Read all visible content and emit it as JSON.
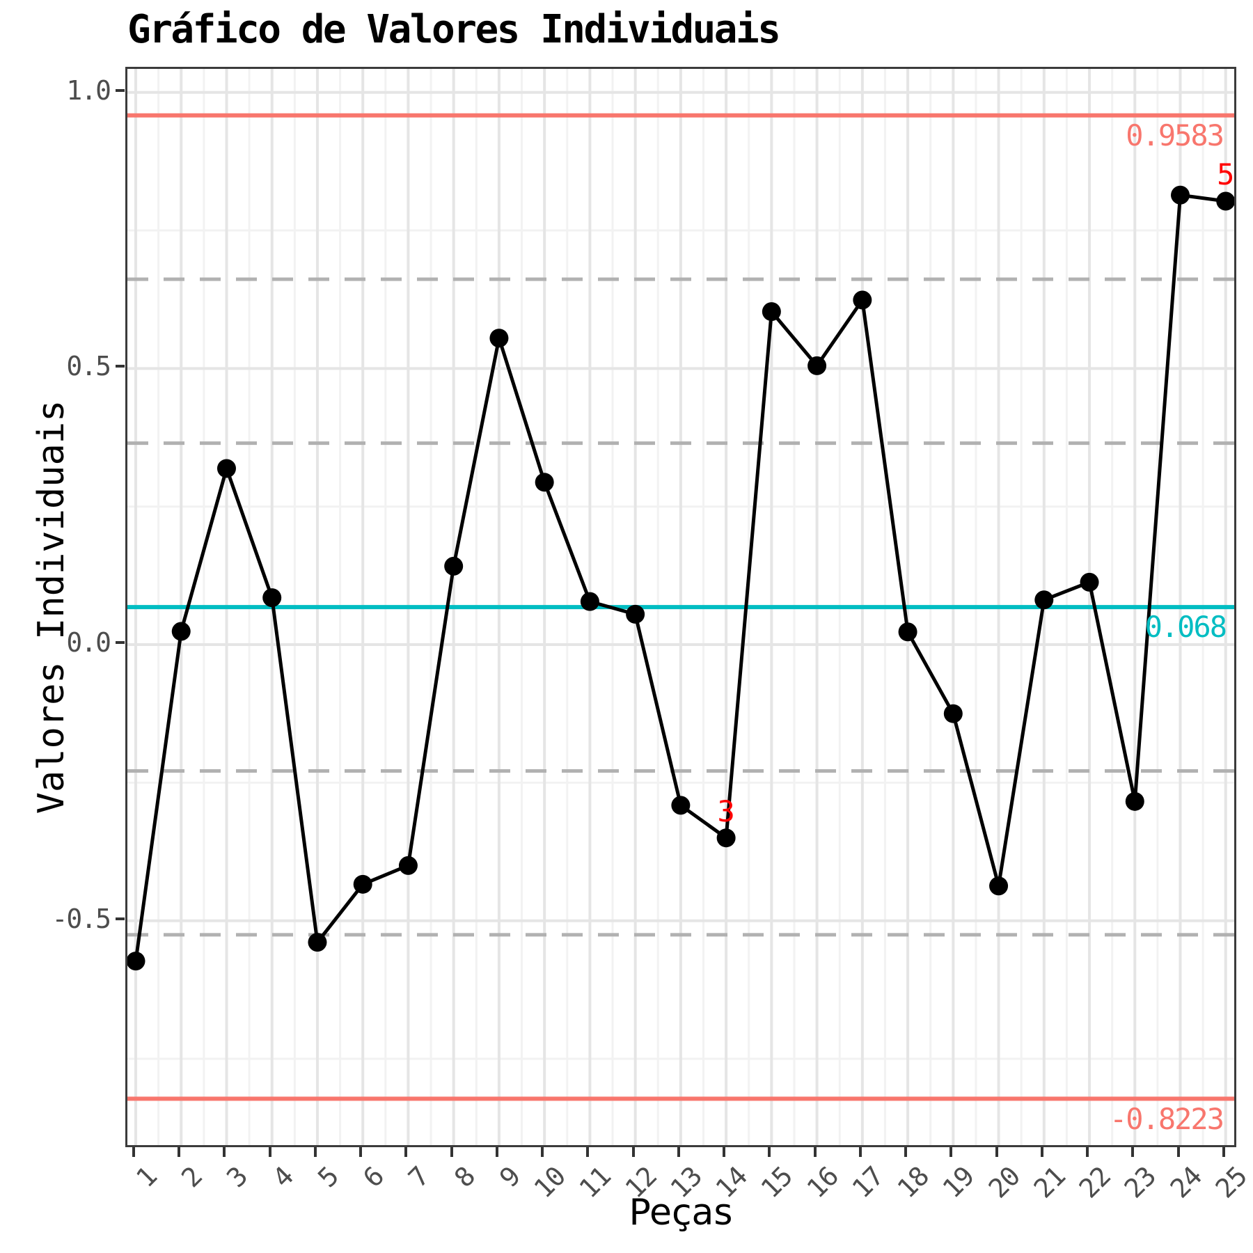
{
  "chart_data": {
    "type": "line",
    "title": "Gráfico de Valores Individuais",
    "xlabel": "Peças",
    "ylabel": "Valores Individuais",
    "x": [
      1,
      2,
      3,
      4,
      5,
      6,
      7,
      8,
      9,
      10,
      11,
      12,
      13,
      14,
      15,
      16,
      17,
      18,
      19,
      20,
      21,
      22,
      23,
      24,
      25
    ],
    "values": [
      -0.573,
      0.024,
      0.319,
      0.085,
      -0.539,
      -0.434,
      -0.4,
      0.142,
      0.555,
      0.294,
      0.078,
      0.055,
      -0.291,
      -0.35,
      0.603,
      0.505,
      0.624,
      0.023,
      -0.125,
      -0.437,
      0.081,
      0.113,
      -0.284,
      0.814,
      0.803
    ],
    "center_line": 0.068,
    "center_label": "0.068",
    "ucl": 0.9583,
    "ucl_label": "0.9583",
    "lcl": -0.8223,
    "lcl_label": "-0.8223",
    "sigma_zone_lines": [
      0.6616,
      0.3648,
      -0.2288,
      -0.5255
    ],
    "annotations": [
      {
        "point": 14,
        "label": "3"
      },
      {
        "point": 25,
        "label": "5"
      }
    ],
    "y_ticks": [
      {
        "value": 1.0,
        "label": "1.0"
      },
      {
        "value": 0.5,
        "label": "0.5"
      },
      {
        "value": 0.0,
        "label": "0.0"
      },
      {
        "value": -0.5,
        "label": "-0.5"
      }
    ],
    "y_minor_ticks": [
      0.75,
      0.25,
      -0.25,
      -0.75
    ],
    "x_tick_labels": [
      "1",
      "2",
      "3",
      "4",
      "5",
      "6",
      "7",
      "8",
      "9",
      "10",
      "11",
      "12",
      "13",
      "14",
      "15",
      "16",
      "17",
      "18",
      "19",
      "20",
      "21",
      "22",
      "23",
      "24",
      "25"
    ],
    "ylim": [
      -0.91,
      1.047
    ],
    "grid": "on",
    "legend": "none",
    "colors": {
      "limit_line": "#F8766D",
      "center_line": "#00BDC2",
      "annotation": "#FF0000",
      "data": "#000000",
      "sigma_dash": "#B1B1B1",
      "grid_major": "#E5E5E5",
      "grid_minor": "#F2F2F2",
      "axis_text": "#4d4d4d",
      "panel_border": "#3b3b3b"
    }
  }
}
